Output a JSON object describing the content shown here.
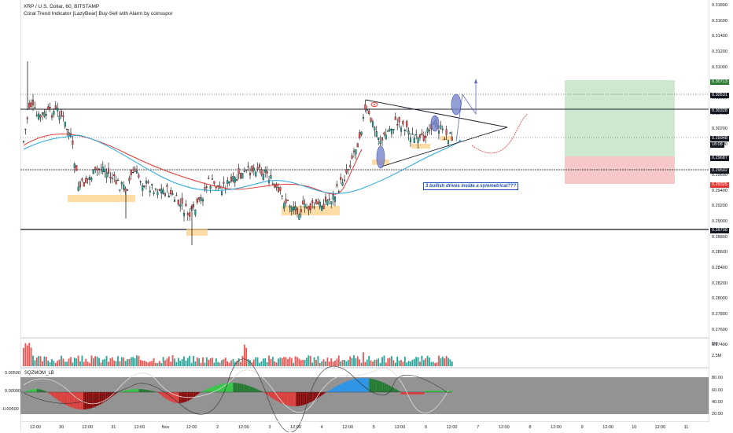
{
  "header": {
    "symbol_line": "XRP / U.S. Dollar, 60, BITSTAMP",
    "indicator_line": "Coral Trend Indicator [LazyBear] Buy-Sell with Alarm by coinsspor"
  },
  "annotation": "3 bullish drives inside a symmetrical???",
  "price_scale": {
    "labels": [
      "0.31800",
      "0.31600",
      "0.31400",
      "0.31200",
      "0.31000",
      "0.30800",
      "0.30600",
      "0.30400",
      "0.30200",
      "0.30000",
      "0.29800",
      "0.29600",
      "0.29400",
      "0.29200",
      "0.29000",
      "0.28800",
      "0.28600",
      "0.28400",
      "0.28200",
      "0.28000",
      "0.27800",
      "0.27600",
      "0.27400"
    ],
    "tags": [
      {
        "text": "0.30713",
        "color": "#2e7d32"
      },
      {
        "text": "0.30531",
        "color": "#131722"
      },
      {
        "text": "0.30328",
        "color": "#131722"
      },
      {
        "text": "0.29948",
        "color": "#131722"
      },
      {
        "text": "18:08",
        "color": "#131722"
      },
      {
        "text": "0.29687",
        "color": "#131722"
      },
      {
        "text": "0.29502",
        "color": "#131722"
      },
      {
        "text": "0.29325",
        "color": "#e53935"
      },
      {
        "text": "0.28708",
        "color": "#131722"
      }
    ]
  },
  "volume_scale": [
    "5M",
    "2.5M"
  ],
  "sqz": {
    "label": "SQZMOM_LB",
    "left_labels": [
      "0.00500",
      "0.00000",
      "-0.00500"
    ],
    "right_labels": [
      "80.00",
      "60.00",
      "40.00",
      "20.00"
    ]
  },
  "time_axis": [
    "12:00",
    "30",
    "12:00",
    "31",
    "12:00",
    "Nov",
    "12:00",
    "2",
    "12:00",
    "3",
    "12:00",
    "4",
    "12:00",
    "5",
    "12:00",
    "6",
    "12:00",
    "7",
    "12:00",
    "8",
    "12:00",
    "9",
    "12:00",
    "10",
    "12:00",
    "11"
  ],
  "colors": {
    "up": "#26a69a",
    "down": "#ef5350",
    "candle": "#000000",
    "coral": "#e53935",
    "cyan": "#29a8e0"
  }
}
